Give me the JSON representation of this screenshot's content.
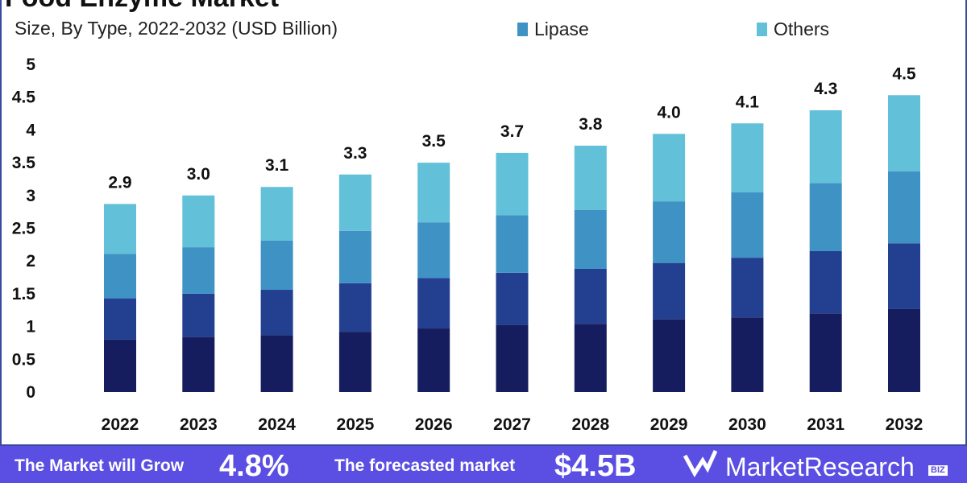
{
  "chart_data": {
    "type": "bar",
    "stacked": true,
    "title": "Food Enzyme Market",
    "subtitle": "Size, By Type, 2022-2032 (USD Billion)",
    "categories": [
      "2022",
      "2023",
      "2024",
      "2025",
      "2026",
      "2027",
      "2028",
      "2029",
      "2030",
      "2031",
      "2032"
    ],
    "series": [
      {
        "color": "#161d5e",
        "values": [
          0.8,
          0.84,
          0.87,
          0.92,
          0.97,
          1.02,
          1.04,
          1.11,
          1.14,
          1.2,
          1.27
        ]
      },
      {
        "color": "#233f8f",
        "values": [
          0.63,
          0.66,
          0.69,
          0.74,
          0.77,
          0.8,
          0.84,
          0.86,
          0.91,
          0.95,
          1.0
        ]
      },
      {
        "name": "Lipase",
        "color": "#3f93c4",
        "values": [
          0.68,
          0.71,
          0.75,
          0.8,
          0.85,
          0.88,
          0.9,
          0.94,
          1.0,
          1.04,
          1.1
        ]
      },
      {
        "name": "Others",
        "color": "#62c0d8",
        "values": [
          0.76,
          0.79,
          0.82,
          0.86,
          0.91,
          0.95,
          0.98,
          1.03,
          1.05,
          1.11,
          1.16
        ]
      }
    ],
    "totals_labels": [
      "2.9",
      "3.0",
      "3.1",
      "3.3",
      "3.5",
      "3.7",
      "3.8",
      "4.0",
      "4.1",
      "4.3",
      "4.5"
    ],
    "yticks": [
      "0",
      "0.5",
      "1",
      "1.5",
      "2",
      "2.5",
      "3",
      "3.5",
      "4",
      "4.5",
      "5"
    ],
    "ylim": [
      0,
      5
    ],
    "grid": false,
    "legend_position": "top"
  },
  "banner": {
    "grow_text": "The Market will Grow",
    "cagr": "4.8%",
    "forecast_text": "The forecasted market",
    "value": "$4.5B",
    "brand": "MarketResearch",
    "brand_suffix": "BIZ"
  },
  "colors": {
    "banner": "#5b4fe3",
    "frame": "#3b4aa0"
  }
}
